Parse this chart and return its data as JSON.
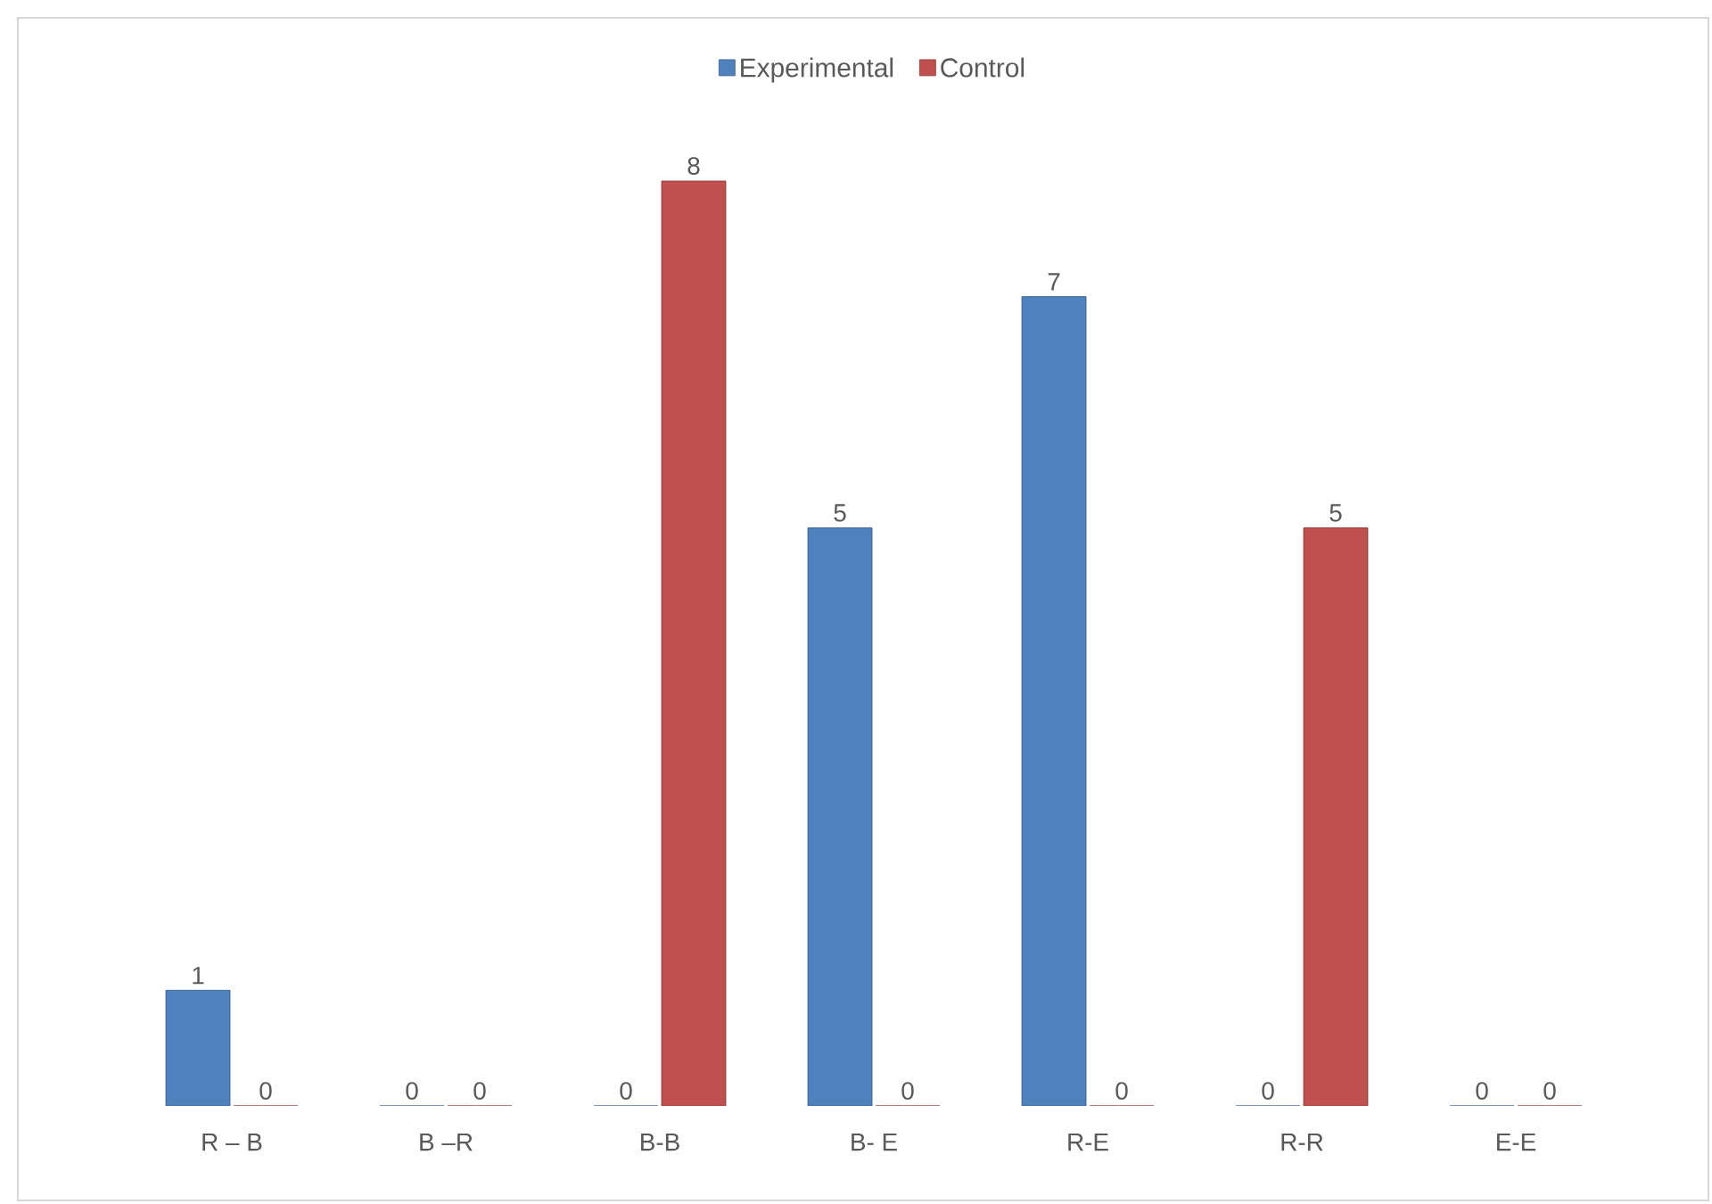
{
  "chart_data": {
    "type": "bar",
    "categories": [
      "R – B",
      "B –R",
      "B-B",
      "B- E",
      "R-E",
      "R-R",
      "E-E"
    ],
    "series": [
      {
        "name": "Experimental",
        "color": "#4f81bd",
        "values": [
          1,
          0,
          0,
          5,
          7,
          0,
          0
        ]
      },
      {
        "name": "Control",
        "color": "#c0504d",
        "values": [
          0,
          0,
          8,
          0,
          0,
          5,
          0
        ]
      }
    ],
    "data_labels": true,
    "legend": "top",
    "grid": false
  }
}
